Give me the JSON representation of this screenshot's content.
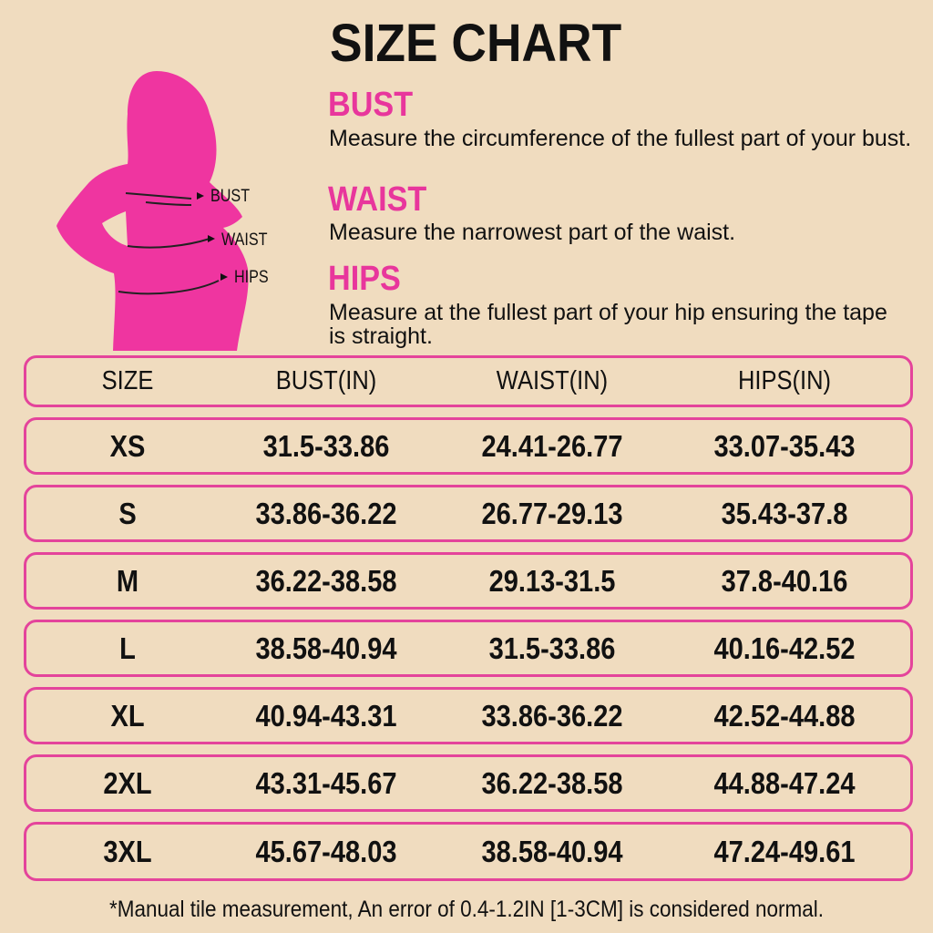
{
  "title": "SIZE CHART",
  "colors": {
    "accent": "#e8369c",
    "background": "#f0dcbf",
    "border": "#e4449b"
  },
  "figure": {
    "icon": "woman-silhouette",
    "labels": [
      "BUST",
      "WAIST",
      "HIPS"
    ]
  },
  "sections": [
    {
      "heading": "BUST",
      "text": "Measure the circumference of the fullest part of your bust."
    },
    {
      "heading": "WAIST",
      "text": "Measure the narrowest part of the waist."
    },
    {
      "heading": "HIPS",
      "text": "Measure at the fullest part of your hip ensuring the tape is straight."
    }
  ],
  "table": {
    "headers": [
      "SIZE",
      "BUST(IN)",
      "WAIST(IN)",
      "HIPS(IN)"
    ],
    "rows": [
      [
        "XS",
        "31.5-33.86",
        "24.41-26.77",
        "33.07-35.43"
      ],
      [
        "S",
        "33.86-36.22",
        "26.77-29.13",
        "35.43-37.8"
      ],
      [
        "M",
        "36.22-38.58",
        "29.13-31.5",
        "37.8-40.16"
      ],
      [
        "L",
        "38.58-40.94",
        "31.5-33.86",
        "40.16-42.52"
      ],
      [
        "XL",
        "40.94-43.31",
        "33.86-36.22",
        "42.52-44.88"
      ],
      [
        "2XL",
        "43.31-45.67",
        "36.22-38.58",
        "44.88-47.24"
      ],
      [
        "3XL",
        "45.67-48.03",
        "38.58-40.94",
        "47.24-49.61"
      ]
    ]
  },
  "note": "*Manual tile measurement, An error of 0.4-1.2IN [1-3CM] is considered normal."
}
